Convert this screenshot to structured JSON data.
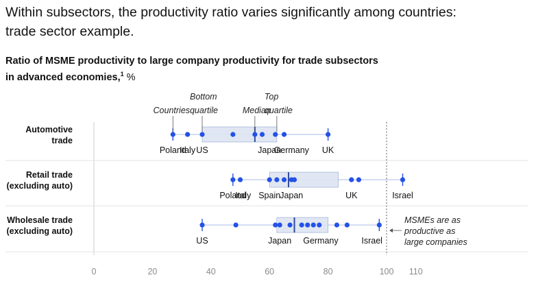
{
  "title": {
    "line1": "Within subsectors, the productivity ratio varies significantly among countries:",
    "line2": "trade sector example."
  },
  "subtitle": {
    "line1": "Ratio of MSME productivity to large company productivity for trade subsectors",
    "line2": "in advanced economies,",
    "footnote_mark": "1",
    "unit": "%"
  },
  "chart_data": {
    "type": "box-dot",
    "x_ticks": [
      0,
      20,
      40,
      60,
      80,
      100,
      110
    ],
    "xlim": [
      0,
      110
    ],
    "reference_line": {
      "value": 100,
      "label_lines": [
        "MSMEs are as",
        "productive as",
        "large companies"
      ]
    },
    "legend_annotations": [
      {
        "lines": [
          "Countries"
        ],
        "value": 27
      },
      {
        "lines": [
          "Bottom",
          "quartile"
        ],
        "value": 37
      },
      {
        "lines": [
          "Median"
        ],
        "value": 55
      },
      {
        "lines": [
          "Top",
          "quartile"
        ],
        "value": 62.5
      }
    ],
    "categories": [
      {
        "name_lines": [
          "Automotive",
          "trade"
        ],
        "points": [
          27,
          32,
          37,
          47.5,
          55,
          57.5,
          62,
          65,
          80
        ],
        "q1": 37,
        "median": 55,
        "q3": 62.5,
        "labels": [
          {
            "text": "Poland",
            "value": 27
          },
          {
            "text": "Italy",
            "value": 32
          },
          {
            "text": "US",
            "value": 37
          },
          {
            "text": "Japan",
            "value": 60
          },
          {
            "text": "Germany",
            "value": 67.5
          },
          {
            "text": "UK",
            "value": 80
          }
        ]
      },
      {
        "name_lines": [
          "Retail trade",
          "(excluding auto)"
        ],
        "points": [
          47.5,
          50,
          60,
          62.5,
          65,
          67.5,
          68.5,
          88,
          90.5,
          105.5
        ],
        "q1": 60,
        "median": 66.5,
        "q3": 83.5,
        "labels": [
          {
            "text": "Poland",
            "value": 47.5
          },
          {
            "text": "Italy",
            "value": 51
          },
          {
            "text": "Spain",
            "value": 60
          },
          {
            "text": "Japan",
            "value": 67.5
          },
          {
            "text": "UK",
            "value": 88
          },
          {
            "text": "Israel",
            "value": 105.5
          }
        ]
      },
      {
        "name_lines": [
          "Wholesale trade",
          "(excluding auto)"
        ],
        "points": [
          37,
          48.5,
          62,
          63.5,
          67,
          71,
          73,
          75,
          77,
          83,
          86.5,
          97.5
        ],
        "q1": 62.5,
        "median": 68.5,
        "q3": 80,
        "labels": [
          {
            "text": "US",
            "value": 37
          },
          {
            "text": "Japan",
            "value": 63.5
          },
          {
            "text": "Germany",
            "value": 77.5
          },
          {
            "text": "Israel",
            "value": 95
          }
        ]
      }
    ]
  },
  "colors": {
    "dot": "#2451e6",
    "box": "#dde4f2",
    "box_edge": "#8fa3d0",
    "median": "#2c4a9e",
    "range_line": "#a9bbec",
    "axis": "#cccccc",
    "reference": "#777777"
  }
}
